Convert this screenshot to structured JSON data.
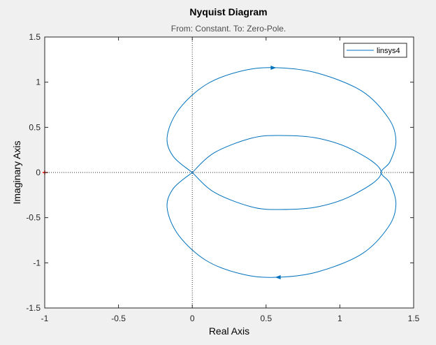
{
  "chart_data": {
    "type": "line",
    "title": "Nyquist Diagram",
    "subtitle": "From: Constant.  To: Zero-Pole.",
    "xlabel": "Real Axis",
    "ylabel": "Imaginary Axis",
    "xlim": [
      -1,
      1.5
    ],
    "ylim": [
      -1.5,
      1.5
    ],
    "x_ticks": [
      "-1",
      "-0.5",
      "0",
      "0.5",
      "1",
      "1.5"
    ],
    "y_ticks": [
      "-1.5",
      "-1",
      "-0.5",
      "0",
      "0.5",
      "1",
      "1.5"
    ],
    "grid": false,
    "legend_position": "top-right",
    "critical_point": [
      -1,
      0
    ],
    "series": [
      {
        "name": "linsys4",
        "color": "#0072bd",
        "outer_loop": [
          [
            0,
            0
          ],
          [
            -0.13,
            0.18
          ],
          [
            -0.17,
            0.4
          ],
          [
            -0.09,
            0.7
          ],
          [
            0.1,
            0.98
          ],
          [
            0.35,
            1.13
          ],
          [
            0.58,
            1.16
          ],
          [
            0.85,
            1.1
          ],
          [
            1.15,
            0.9
          ],
          [
            1.33,
            0.6
          ],
          [
            1.38,
            0.35
          ],
          [
            1.34,
            0.12
          ],
          [
            1.28,
            0
          ],
          [
            1.34,
            -0.12
          ],
          [
            1.38,
            -0.35
          ],
          [
            1.33,
            -0.6
          ],
          [
            1.15,
            -0.9
          ],
          [
            0.85,
            -1.1
          ],
          [
            0.58,
            -1.16
          ],
          [
            0.35,
            -1.13
          ],
          [
            0.1,
            -0.98
          ],
          [
            -0.09,
            -0.7
          ],
          [
            -0.17,
            -0.4
          ],
          [
            -0.13,
            -0.18
          ],
          [
            0,
            0
          ]
        ],
        "inner_loop": [
          [
            0,
            0
          ],
          [
            0.15,
            0.22
          ],
          [
            0.4,
            0.38
          ],
          [
            0.59,
            0.41
          ],
          [
            0.85,
            0.38
          ],
          [
            1.1,
            0.24
          ],
          [
            1.28,
            0
          ],
          [
            1.1,
            -0.24
          ],
          [
            0.85,
            -0.38
          ],
          [
            0.59,
            -0.41
          ],
          [
            0.4,
            -0.38
          ],
          [
            0.15,
            -0.22
          ],
          [
            0,
            0
          ]
        ],
        "arrows": [
          {
            "at": [
              0.55,
              1.16
            ],
            "direction": "right"
          },
          {
            "at": [
              0.58,
              -1.16
            ],
            "direction": "left"
          }
        ]
      }
    ]
  }
}
